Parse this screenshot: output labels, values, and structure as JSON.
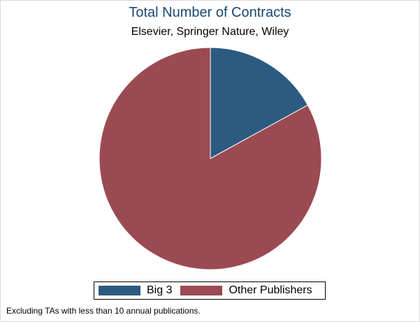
{
  "chart_data": {
    "type": "pie",
    "title": "Total Number of Contracts",
    "subtitle": "Elsevier, Springer Nature, Wiley",
    "categories": [
      "Big 3",
      "Other Publishers"
    ],
    "values": [
      17,
      83
    ],
    "colors": [
      "#2d5a80",
      "#9b4a51"
    ],
    "legend": "bottom",
    "note": "Excluding TAs with less than 10 annual publications."
  }
}
